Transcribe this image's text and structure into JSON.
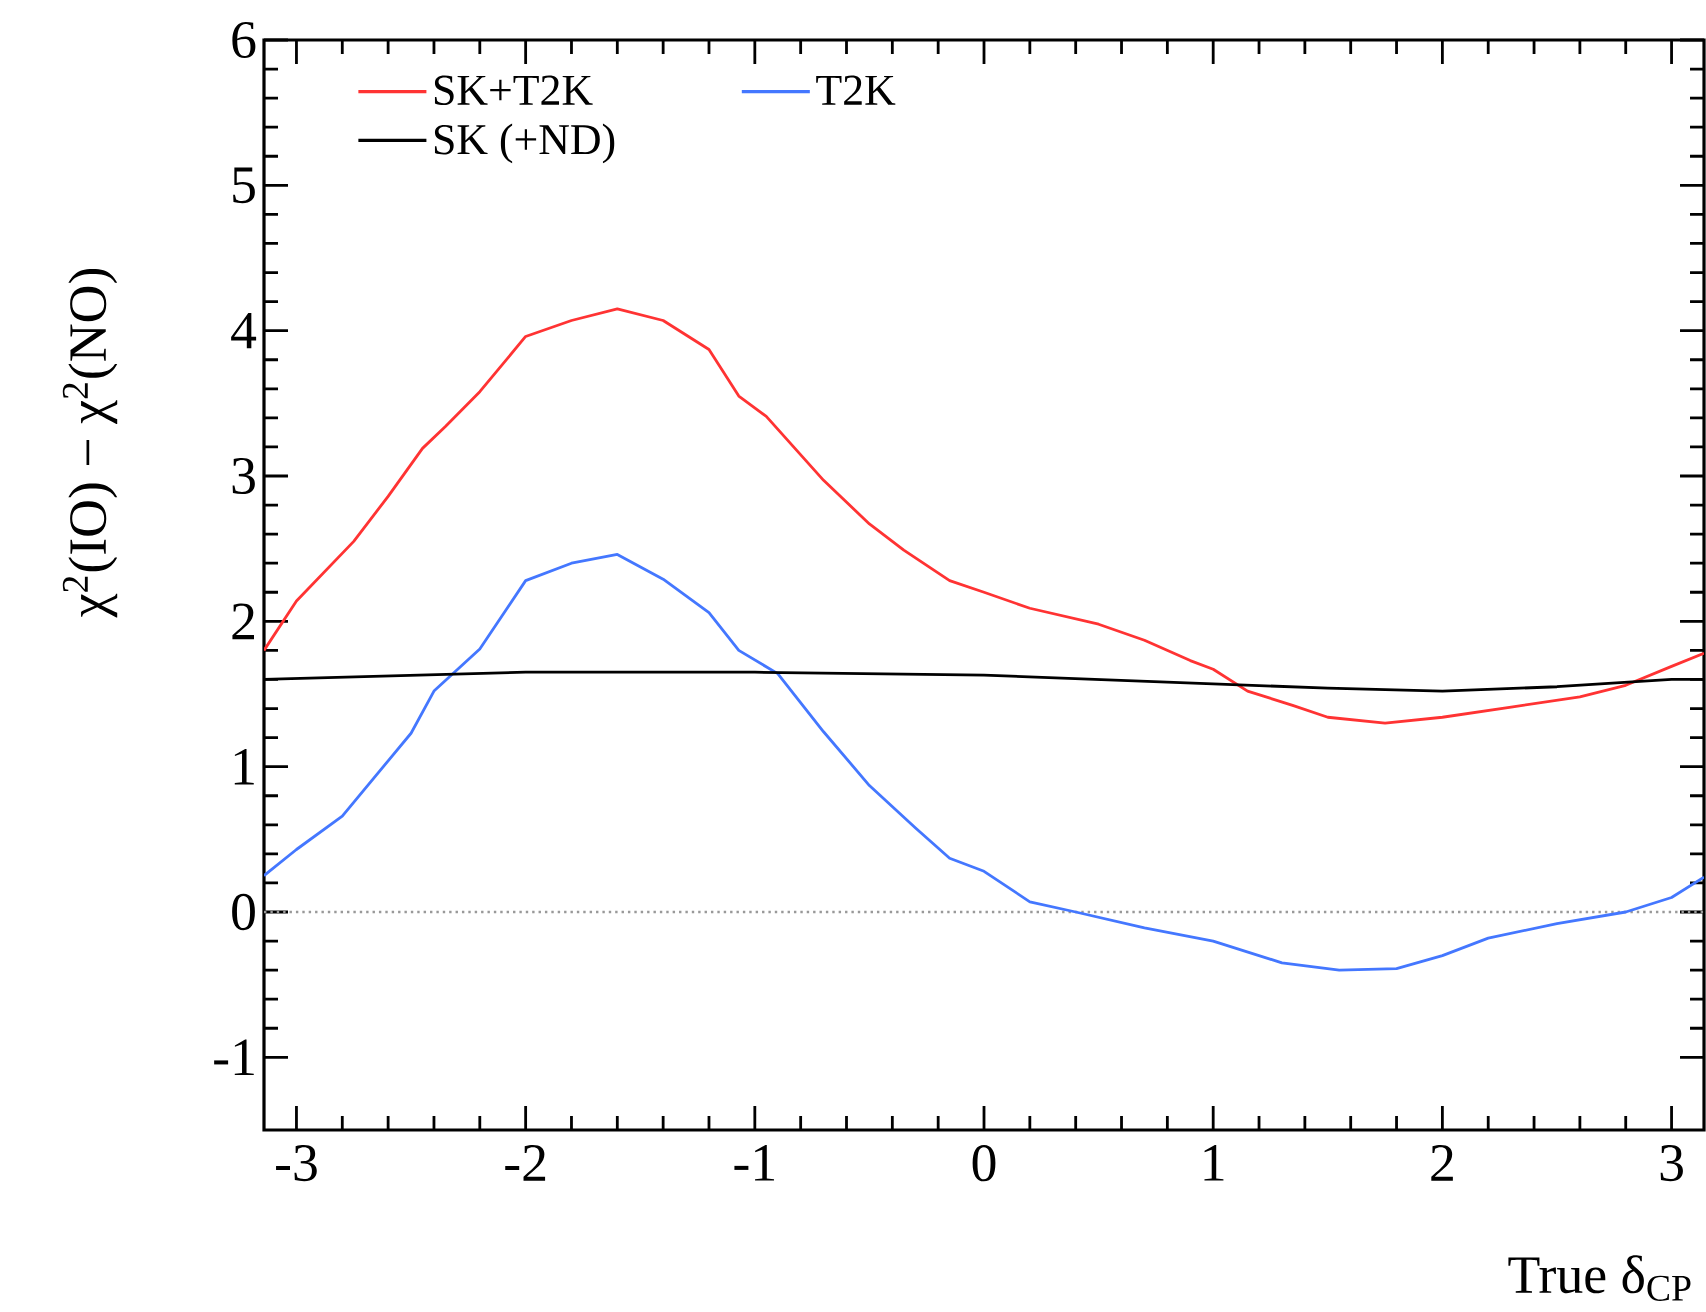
{
  "chart_data": {
    "type": "line",
    "xlabel": "True δ$_{CP}$",
    "ylabel": "χ$^{2}$(IO) − χ$^{2}$(NO)",
    "xlim": [
      -3.1416,
      3.1416
    ],
    "ylim": [
      -1.5,
      6
    ],
    "xticks": [
      -3,
      -2,
      -1,
      0,
      1,
      2,
      3
    ],
    "yticks": [
      -1,
      0,
      1,
      2,
      3,
      4,
      5,
      6
    ],
    "grid": false,
    "legend": "top left",
    "marker": "none",
    "line_style": "solid",
    "ref_lines": [
      {
        "axis": "y",
        "value": 0,
        "color": "#999999",
        "line_style": "dotted"
      }
    ],
    "series": [
      {
        "name": "SK+T2K",
        "color": "#ff3333",
        "x": [
          -3.1416,
          -3.0,
          -2.75,
          -2.6,
          -2.45,
          -2.35,
          -2.2,
          -2.0,
          -1.8,
          -1.6,
          -1.4,
          -1.2,
          -1.07,
          -0.95,
          -0.7,
          -0.5,
          -0.35,
          -0.15,
          0.0,
          0.2,
          0.5,
          0.7,
          0.9,
          1.0,
          1.15,
          1.35,
          1.5,
          1.75,
          2.0,
          2.3,
          2.6,
          2.8,
          3.0,
          3.1416
        ],
        "values": [
          1.8,
          2.14,
          2.55,
          2.86,
          3.19,
          3.34,
          3.58,
          3.96,
          4.07,
          4.15,
          4.07,
          3.87,
          3.55,
          3.41,
          2.97,
          2.67,
          2.49,
          2.28,
          2.2,
          2.09,
          1.98,
          1.87,
          1.73,
          1.67,
          1.52,
          1.42,
          1.34,
          1.3,
          1.34,
          1.41,
          1.48,
          1.56,
          1.69,
          1.78
        ]
      },
      {
        "name": "T2K",
        "color": "#4477ff",
        "x": [
          -3.1416,
          -3.0,
          -2.8,
          -2.6,
          -2.5,
          -2.4,
          -2.2,
          -2.0,
          -1.8,
          -1.6,
          -1.4,
          -1.2,
          -1.07,
          -0.9,
          -0.7,
          -0.5,
          -0.3,
          -0.15,
          0.0,
          0.2,
          0.4,
          0.7,
          1.0,
          1.3,
          1.55,
          1.8,
          2.0,
          2.2,
          2.5,
          2.8,
          3.0,
          3.1416
        ],
        "values": [
          0.25,
          0.43,
          0.66,
          1.04,
          1.23,
          1.52,
          1.81,
          2.28,
          2.4,
          2.46,
          2.29,
          2.06,
          1.8,
          1.64,
          1.24,
          0.87,
          0.58,
          0.37,
          0.28,
          0.07,
          0.0,
          -0.11,
          -0.2,
          -0.35,
          -0.4,
          -0.39,
          -0.3,
          -0.18,
          -0.08,
          0.0,
          0.1,
          0.24
        ]
      },
      {
        "name": "SK (+ND)",
        "color": "#000000",
        "x": [
          -3.1416,
          -2.0,
          -1.0,
          0.0,
          0.5,
          1.0,
          1.5,
          2.0,
          2.5,
          3.0,
          3.1416
        ],
        "values": [
          1.6,
          1.65,
          1.65,
          1.63,
          1.6,
          1.57,
          1.54,
          1.52,
          1.55,
          1.6,
          1.6
        ]
      }
    ]
  }
}
